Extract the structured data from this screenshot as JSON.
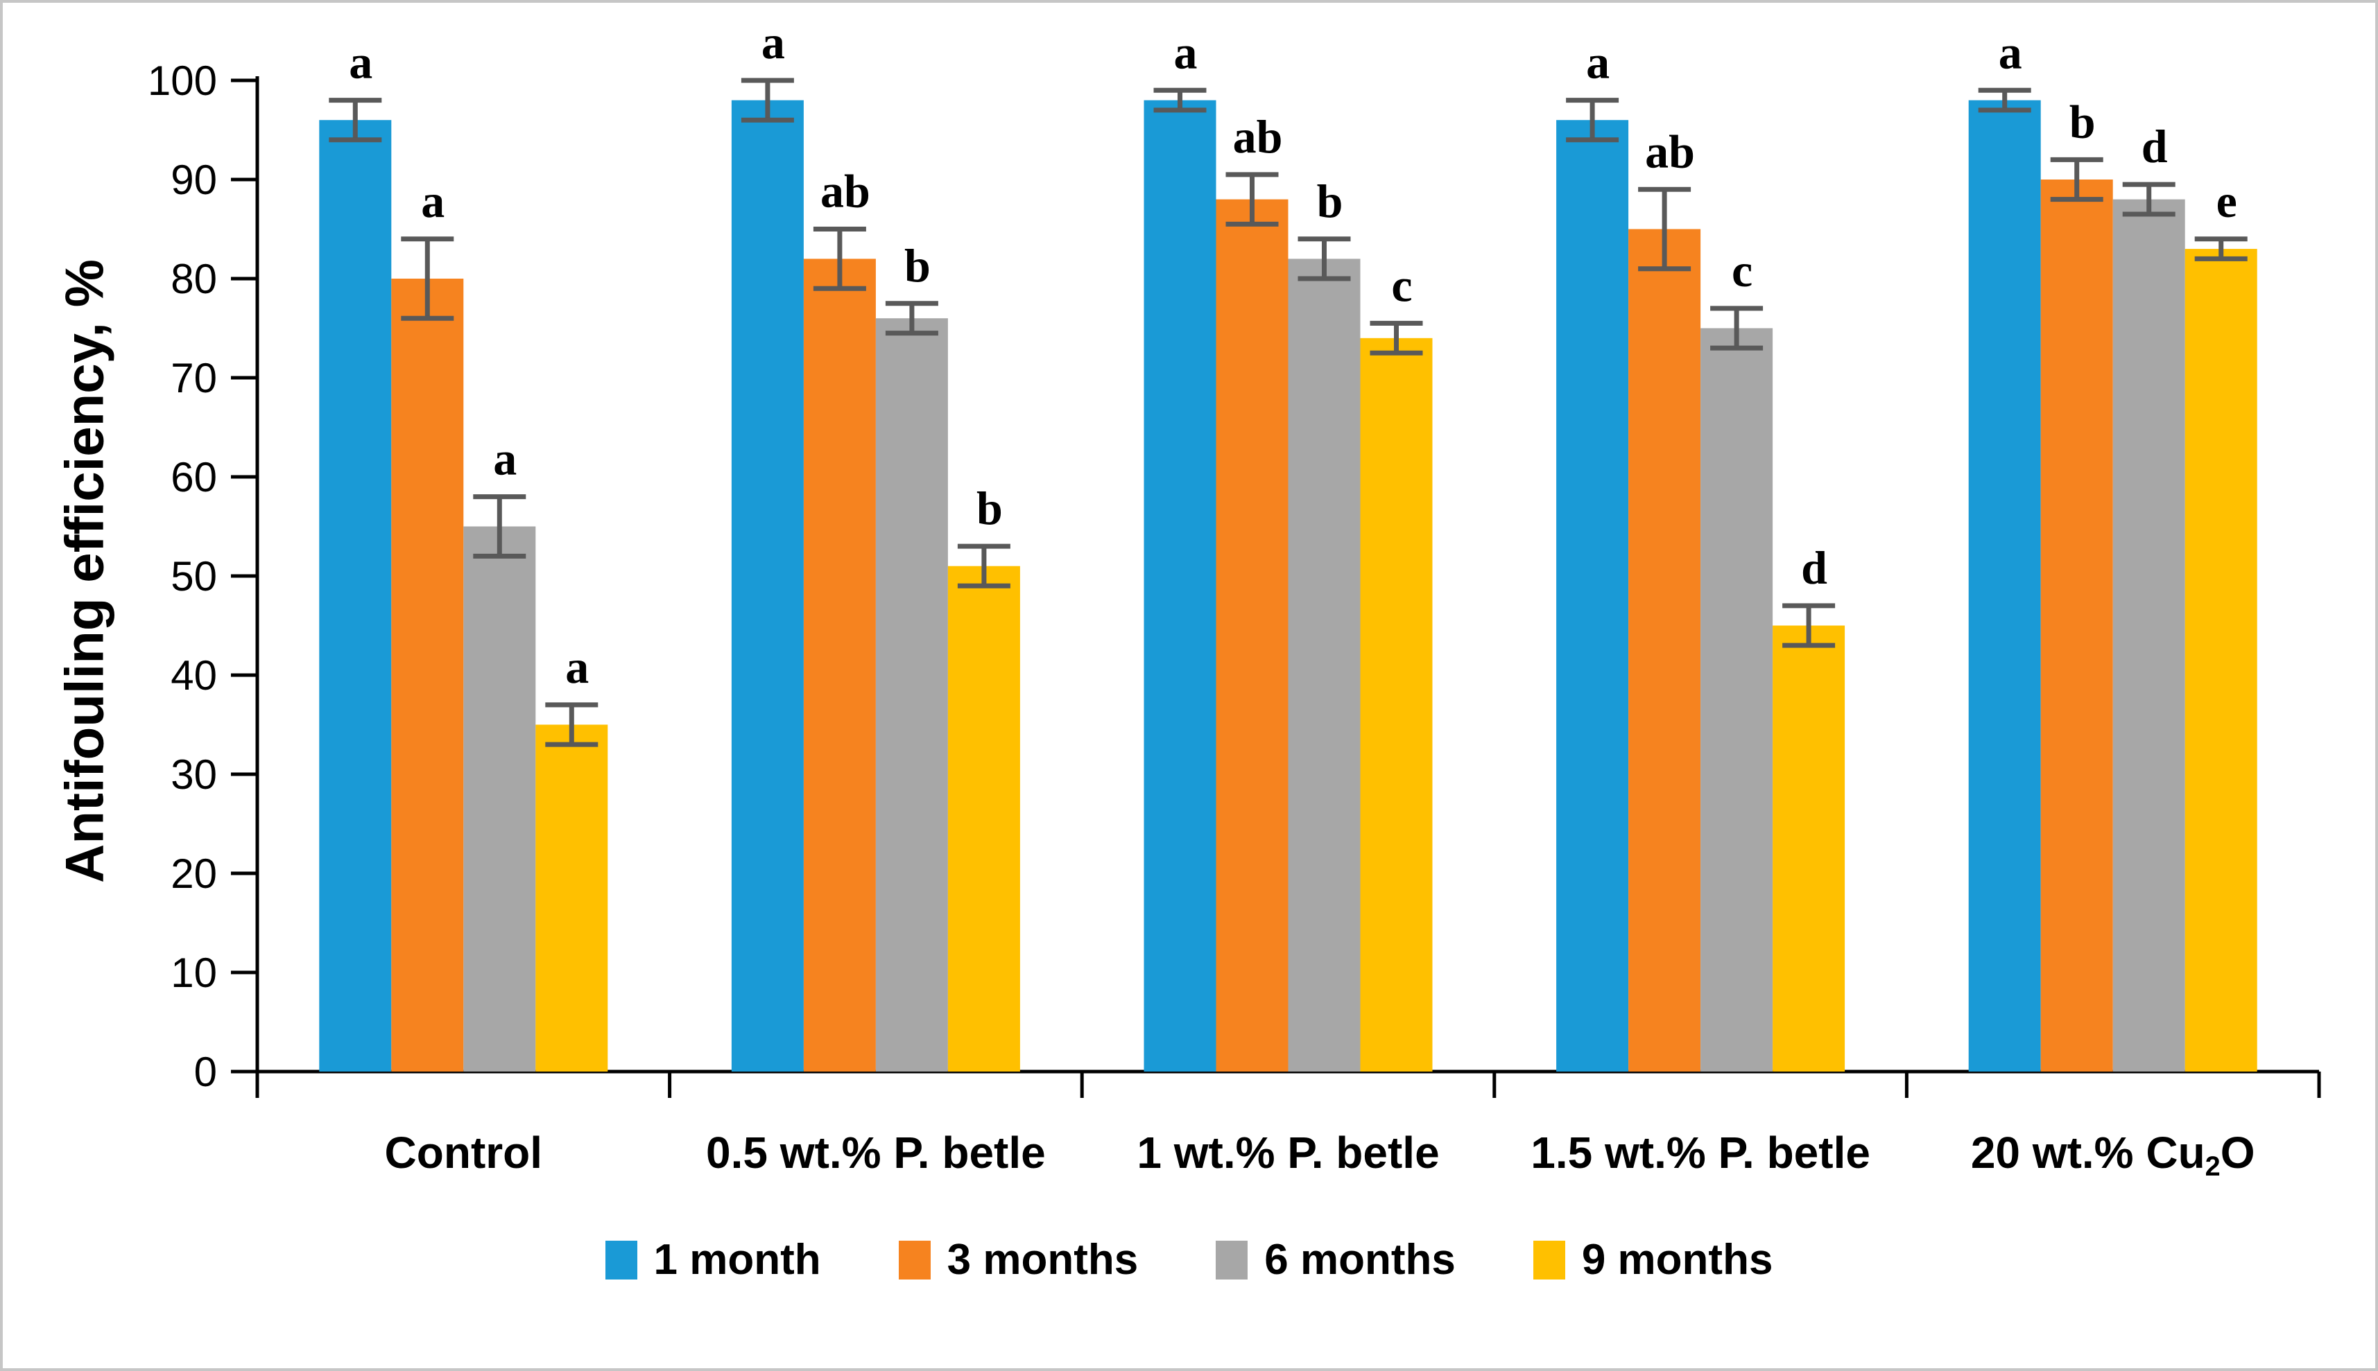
{
  "chart_data": {
    "type": "bar",
    "title": "",
    "ylabel": "Antifouling efficiency, %",
    "xlabel": "",
    "ylim": [
      0,
      100
    ],
    "ytick_step": 10,
    "grid": false,
    "legend_position": "bottom",
    "axis_color": "#000000",
    "error_bar_color": "#595959",
    "categories": [
      "Control",
      "0.5 wt.% P. betle",
      "1 wt.% P. betle",
      "1.5 wt.% P. betle",
      "20 wt.% Cu2O"
    ],
    "category_labels": [
      [
        {
          "t": "Control"
        }
      ],
      [
        {
          "t": "0.5 wt.% P. betle"
        }
      ],
      [
        {
          "t": "1 wt.% P. betle"
        }
      ],
      [
        {
          "t": "1.5 wt.% P. betle"
        }
      ],
      [
        {
          "t": "20 wt.% Cu"
        },
        {
          "t": "2",
          "sub": true
        },
        {
          "t": "O"
        }
      ]
    ],
    "series": [
      {
        "name": "1 month",
        "color": "#1A9AD6",
        "values": [
          96,
          98,
          98,
          96,
          98
        ],
        "errors": [
          2,
          2,
          1,
          2,
          1
        ],
        "letters": [
          "a",
          "a",
          "a",
          "a",
          "a"
        ]
      },
      {
        "name": "3 months",
        "color": "#F6831F",
        "values": [
          80,
          82,
          88,
          85,
          90
        ],
        "errors": [
          4,
          3,
          2.5,
          4,
          2
        ],
        "letters": [
          "a",
          "ab",
          "ab",
          "ab",
          "b"
        ]
      },
      {
        "name": "6 months",
        "color": "#A7A7A7",
        "values": [
          55,
          76,
          82,
          75,
          88
        ],
        "errors": [
          3,
          1.5,
          2,
          2,
          1.5
        ],
        "letters": [
          "a",
          "b",
          "b",
          "c",
          "d"
        ]
      },
      {
        "name": "9 months",
        "color": "#FFC000",
        "values": [
          35,
          51,
          74,
          45,
          83
        ],
        "errors": [
          2,
          2,
          1.5,
          2,
          1
        ],
        "letters": [
          "a",
          "b",
          "c",
          "d",
          "e"
        ]
      }
    ]
  }
}
